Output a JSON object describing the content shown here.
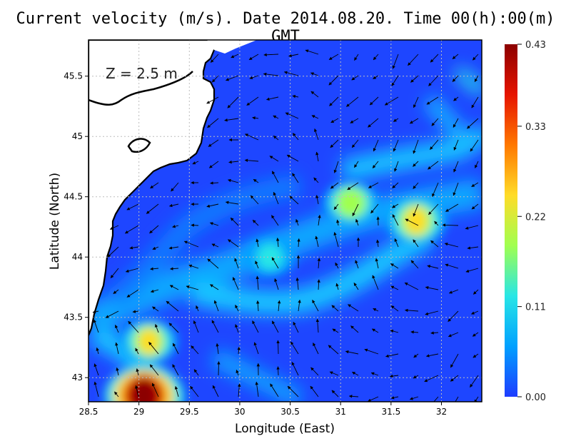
{
  "title": "Current velocity (m/s). Date 2014.08.20. Time 00(h):00(m) GMT",
  "depth_label": "Z = 2.5 m",
  "xlabel": "Longitude (East)",
  "ylabel": "Latitude (North)",
  "x_ticks": [
    "28.5",
    "29",
    "29.5",
    "30",
    "30.5",
    "31",
    "31.5",
    "32"
  ],
  "y_ticks": [
    "43",
    "43.5",
    "44",
    "44.5",
    "45",
    "45.5"
  ],
  "colorbar": {
    "ticks": [
      "0.00",
      "0.11",
      "0.22",
      "0.33",
      "0.43"
    ],
    "min": 0.0,
    "max": 0.43,
    "colors": [
      "#1e3cff",
      "#00a0ff",
      "#28e6e6",
      "#a0ff50",
      "#ffdc28",
      "#ff7800",
      "#e61400",
      "#8c0000"
    ]
  },
  "map": {
    "lon_range": [
      28.5,
      32.4
    ],
    "lat_range": [
      42.8,
      45.8
    ],
    "land_color": "#ffffff",
    "sea_background": "#1e46ff",
    "coastline_color": "#000000",
    "gridlines": true
  },
  "chart_data": {
    "type": "heatmap",
    "title": "Current velocity (m/s). Date 2014.08.20. Time 00(h):00(m) GMT",
    "xlabel": "Longitude (East)",
    "ylabel": "Latitude (North)",
    "xlim": [
      28.5,
      32.4
    ],
    "ylim": [
      42.8,
      45.8
    ],
    "value_range": [
      0.0,
      0.43
    ],
    "speed_maxima": [
      {
        "lon": 29.05,
        "lat": 42.85,
        "speed": 0.43
      },
      {
        "lon": 31.75,
        "lat": 44.3,
        "speed": 0.26
      },
      {
        "lon": 29.1,
        "lat": 43.3,
        "speed": 0.22
      },
      {
        "lon": 31.1,
        "lat": 44.45,
        "speed": 0.2
      },
      {
        "lon": 30.3,
        "lat": 44.0,
        "speed": 0.15
      }
    ]
  }
}
